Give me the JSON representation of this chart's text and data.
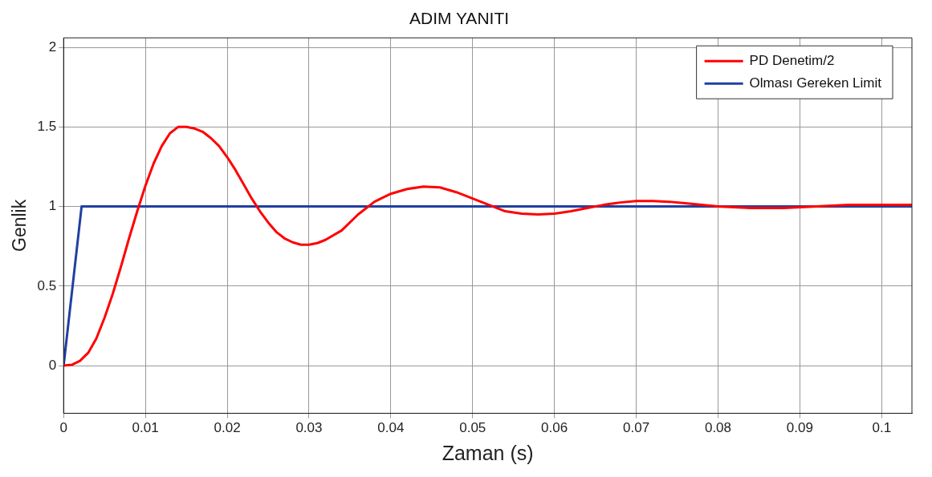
{
  "chart_data": {
    "type": "line",
    "title": "ADIM YANITI",
    "xlabel": "Zaman (s)",
    "ylabel": "Genlik",
    "xlim": [
      0,
      0.1037
    ],
    "xticks": [
      0,
      0.01,
      0.02,
      0.03,
      0.04,
      0.05,
      0.06,
      0.07,
      0.08,
      0.09,
      0.1
    ],
    "ylim": [
      -0.3,
      2.06
    ],
    "yticks": [
      0,
      0.5,
      1,
      1.5,
      2
    ],
    "grid": true,
    "legend": "top right",
    "marker": "none",
    "line_style": "solid",
    "series": [
      {
        "name": "PD Denetim/2",
        "color": "#ff0000",
        "x": [
          0,
          0.001,
          0.002,
          0.003,
          0.004,
          0.005,
          0.006,
          0.007,
          0.008,
          0.009,
          0.01,
          0.011,
          0.012,
          0.013,
          0.014,
          0.015,
          0.016,
          0.017,
          0.018,
          0.019,
          0.02,
          0.021,
          0.022,
          0.023,
          0.024,
          0.025,
          0.026,
          0.027,
          0.028,
          0.029,
          0.03,
          0.031,
          0.032,
          0.034,
          0.036,
          0.038,
          0.04,
          0.042,
          0.044,
          0.046,
          0.048,
          0.05,
          0.052,
          0.054,
          0.056,
          0.058,
          0.06,
          0.062,
          0.064,
          0.066,
          0.068,
          0.07,
          0.072,
          0.074,
          0.076,
          0.078,
          0.08,
          0.082,
          0.084,
          0.086,
          0.088,
          0.09,
          0.092,
          0.094,
          0.096,
          0.098,
          0.1,
          0.1037
        ],
        "values": [
          0,
          0.005,
          0.03,
          0.08,
          0.17,
          0.3,
          0.45,
          0.62,
          0.8,
          0.97,
          1.13,
          1.27,
          1.38,
          1.46,
          1.5,
          1.5,
          1.49,
          1.47,
          1.43,
          1.38,
          1.31,
          1.23,
          1.14,
          1.05,
          0.97,
          0.9,
          0.84,
          0.8,
          0.775,
          0.76,
          0.76,
          0.77,
          0.79,
          0.85,
          0.95,
          1.03,
          1.08,
          1.11,
          1.125,
          1.12,
          1.09,
          1.05,
          1.01,
          0.97,
          0.955,
          0.95,
          0.955,
          0.97,
          0.99,
          1.01,
          1.025,
          1.035,
          1.035,
          1.03,
          1.02,
          1.01,
          1.0,
          0.995,
          0.99,
          0.99,
          0.99,
          0.995,
          1.0,
          1.005,
          1.01,
          1.01,
          1.01,
          1.01
        ]
      },
      {
        "name": "Olması Gereken Limit",
        "color": "#2040a0",
        "x": [
          0,
          0.0022,
          0.1037
        ],
        "values": [
          0,
          1,
          1
        ]
      }
    ]
  }
}
